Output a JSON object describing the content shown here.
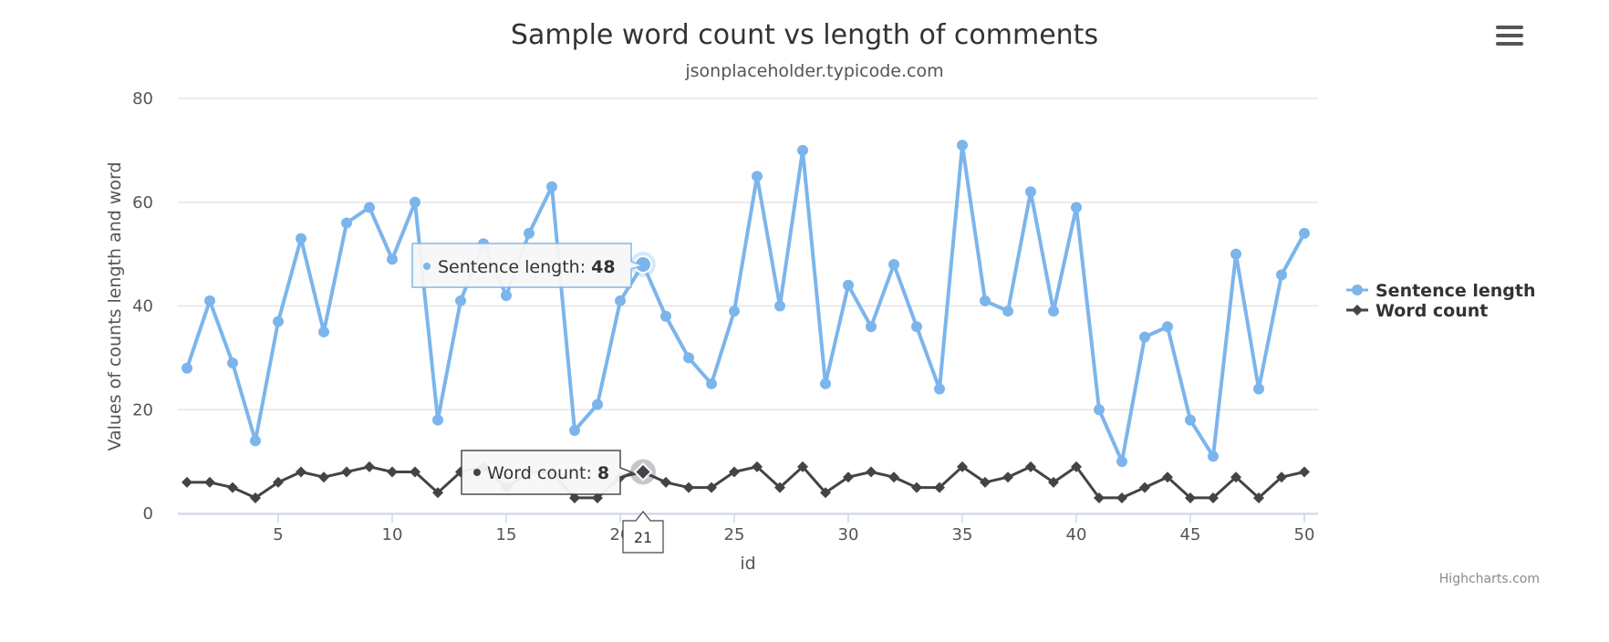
{
  "chart_data": {
    "type": "line",
    "title": "Sample word count vs length of comments",
    "subtitle": "jsonplaceholder.typicode.com",
    "xlabel": "id",
    "ylabel": "Values of counts length and word",
    "x": [
      1,
      2,
      3,
      4,
      5,
      6,
      7,
      8,
      9,
      10,
      11,
      12,
      13,
      14,
      15,
      16,
      17,
      18,
      19,
      20,
      21,
      22,
      23,
      24,
      25,
      26,
      27,
      28,
      29,
      30,
      31,
      32,
      33,
      34,
      35,
      36,
      37,
      38,
      39,
      40,
      41,
      42,
      43,
      44,
      45,
      46,
      47,
      48,
      49,
      50
    ],
    "xlim": [
      0.6,
      50.6
    ],
    "x_ticks": [
      5,
      10,
      15,
      20,
      25,
      30,
      35,
      40,
      45,
      50
    ],
    "ylim": [
      0,
      80
    ],
    "y_ticks": [
      0,
      20,
      40,
      60,
      80
    ],
    "grid": true,
    "legend_position": "right",
    "series": [
      {
        "name": "Sentence length",
        "color": "#7cb5ec",
        "marker": "circle",
        "values": [
          28,
          41,
          29,
          14,
          37,
          53,
          35,
          56,
          59,
          49,
          60,
          18,
          41,
          52,
          42,
          54,
          63,
          16,
          21,
          41,
          48,
          38,
          30,
          25,
          39,
          65,
          40,
          70,
          25,
          44,
          36,
          48,
          36,
          24,
          71,
          41,
          39,
          62,
          39,
          59,
          20,
          10,
          34,
          36,
          18,
          11,
          50,
          24,
          46,
          54
        ]
      },
      {
        "name": "Word count",
        "color": "#434348",
        "marker": "diamond",
        "values": [
          6,
          6,
          5,
          3,
          6,
          8,
          7,
          8,
          9,
          8,
          8,
          4,
          8,
          9,
          5,
          8,
          8,
          3,
          3,
          7,
          8,
          6,
          5,
          5,
          8,
          9,
          5,
          9,
          4,
          7,
          8,
          7,
          5,
          5,
          9,
          6,
          7,
          9,
          6,
          9,
          3,
          3,
          5,
          7,
          3,
          3,
          7,
          3,
          7,
          8
        ]
      }
    ],
    "hover": {
      "x": 21,
      "x_label": "21",
      "tooltips": [
        {
          "series": 0,
          "label": "Sentence length: ",
          "value": "48"
        },
        {
          "series": 1,
          "label": "Word count: ",
          "value": "8"
        }
      ]
    }
  },
  "ui": {
    "menu_icon": "hamburger-menu-icon",
    "credits": "Highcharts.com"
  }
}
